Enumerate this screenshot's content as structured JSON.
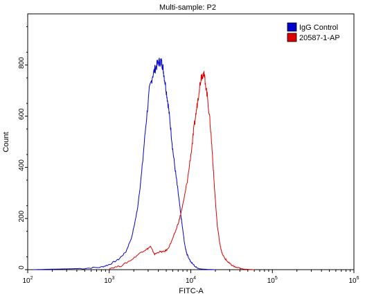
{
  "chart_data": {
    "type": "line",
    "title": "Multi-sample: P2",
    "xlabel": "FITC-A",
    "ylabel": "Count",
    "xscale": "log",
    "xlim": [
      100,
      1000000
    ],
    "ylim": [
      0,
      1000
    ],
    "x_ticks": [
      {
        "value": 100,
        "base": "10",
        "exp": "2"
      },
      {
        "value": 1000,
        "base": "10",
        "exp": "3"
      },
      {
        "value": 10000,
        "base": "10",
        "exp": "4"
      },
      {
        "value": 100000,
        "base": "10",
        "exp": "5"
      },
      {
        "value": 1000000,
        "base": "10",
        "exp": "6"
      }
    ],
    "y_ticks": [
      {
        "value": 0,
        "label": "0"
      },
      {
        "value": 200,
        "label": "200"
      },
      {
        "value": 400,
        "label": "400"
      },
      {
        "value": 600,
        "label": "600"
      },
      {
        "value": 800,
        "label": "800"
      }
    ],
    "legend_position": "top-right",
    "grid": false,
    "series": [
      {
        "name": "IgG Control",
        "color": "#0000cc",
        "x": [
          120,
          200,
          300,
          500,
          800,
          1000,
          1300,
          1600,
          1900,
          2200,
          2500,
          2800,
          3100,
          3400,
          3700,
          4000,
          4300,
          4500,
          4700,
          5000,
          5300,
          5600,
          6000,
          6500,
          7000,
          7500,
          8000,
          8500,
          9000,
          10000,
          11500,
          13000,
          16000,
          20000
        ],
        "y": [
          0,
          2,
          3,
          5,
          10,
          20,
          40,
          70,
          130,
          230,
          380,
          560,
          700,
          760,
          790,
          810,
          815,
          800,
          760,
          700,
          640,
          570,
          470,
          380,
          300,
          220,
          150,
          90,
          60,
          30,
          10,
          3,
          1,
          0
        ]
      },
      {
        "name": "20587-1-AP",
        "color": "#dd0000",
        "x": [
          1000,
          1400,
          1900,
          2500,
          2900,
          3200,
          3600,
          4100,
          4700,
          5200,
          5800,
          6500,
          7300,
          8200,
          9200,
          10300,
          11000,
          11800,
          12600,
          13400,
          14200,
          15000,
          16200,
          17400,
          18500,
          19500,
          21000,
          22500,
          24000,
          26000,
          28500,
          31000,
          35000,
          40000,
          45000,
          52000,
          60000
        ],
        "y": [
          5,
          15,
          40,
          70,
          80,
          90,
          60,
          70,
          70,
          80,
          110,
          150,
          200,
          270,
          360,
          480,
          560,
          630,
          700,
          755,
          770,
          740,
          660,
          560,
          440,
          320,
          180,
          110,
          65,
          45,
          30,
          20,
          10,
          5,
          2,
          1,
          0
        ]
      }
    ]
  }
}
